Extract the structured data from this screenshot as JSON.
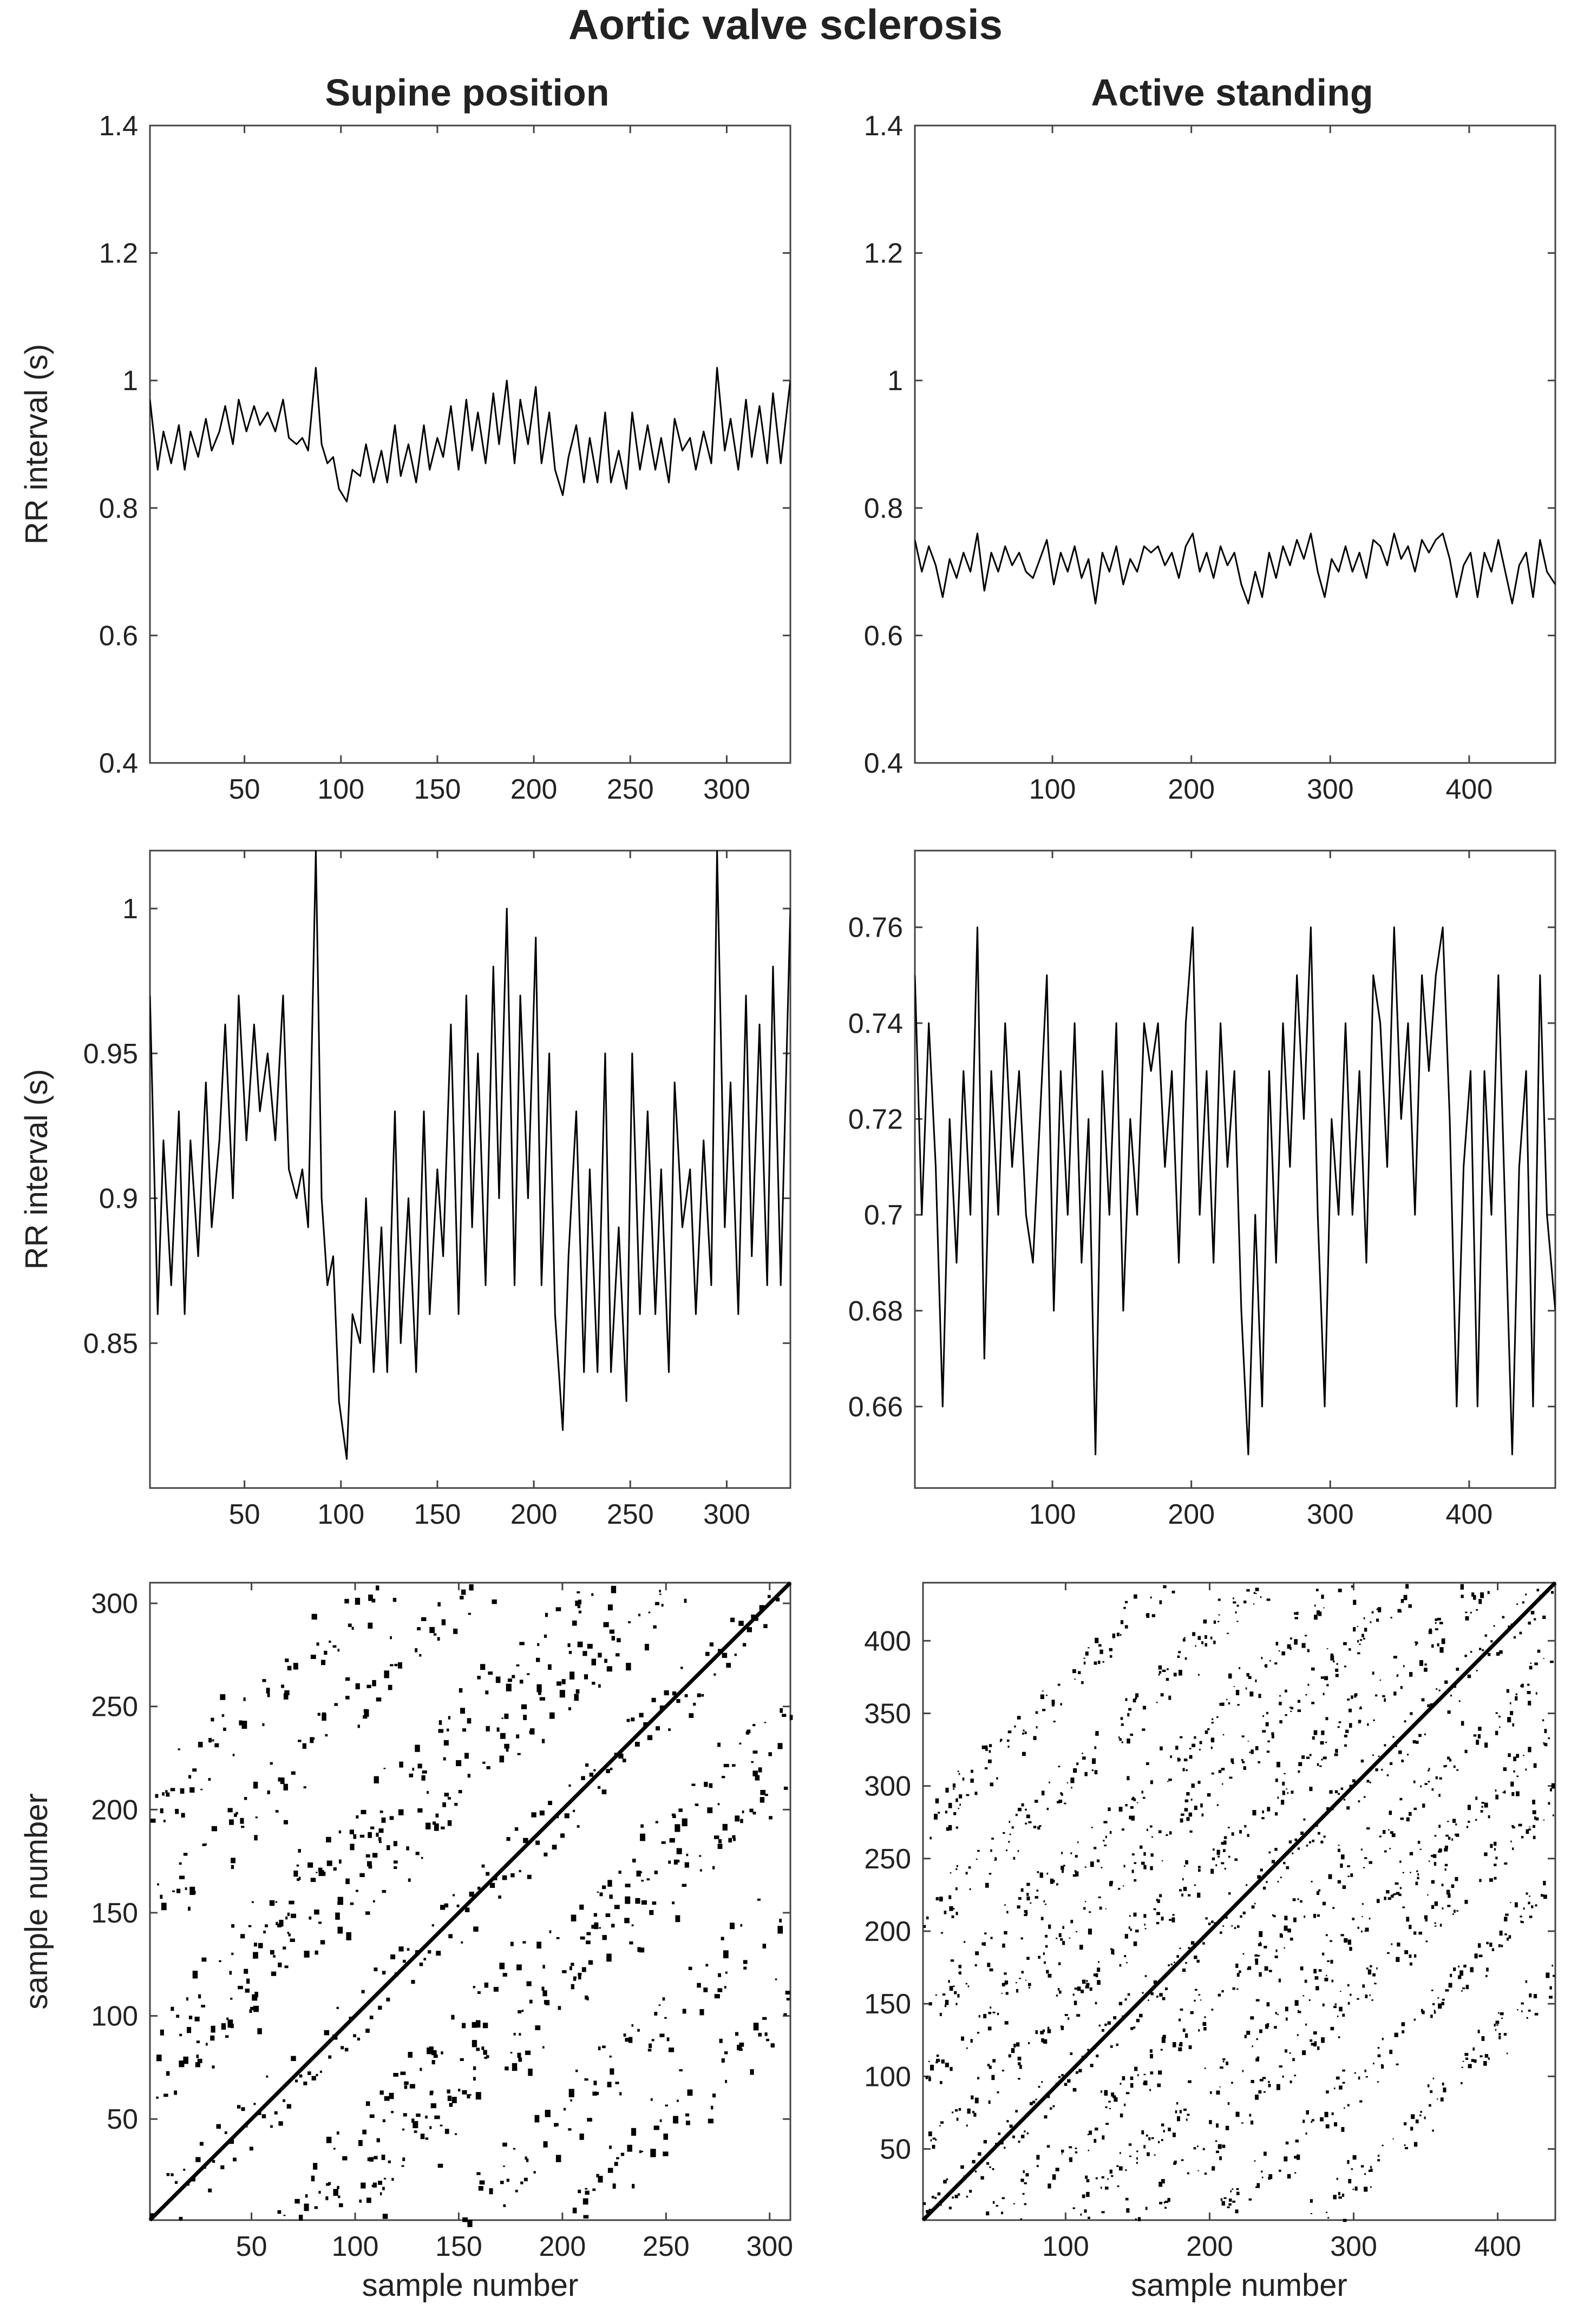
{
  "figure": {
    "title": "Aortic valve sclerosis",
    "column_titles": [
      "Supine position",
      "Active standing"
    ]
  },
  "chart_data": [
    {
      "id": "supine-rr-full",
      "type": "line",
      "title": "Supine position",
      "xlabel": "",
      "ylabel": "RR interval (s)",
      "xlim": [
        1,
        333
      ],
      "ylim": [
        0.4,
        1.4
      ],
      "xticks": [
        50,
        100,
        150,
        200,
        250,
        300
      ],
      "yticks": [
        0.4,
        0.6,
        0.8,
        1,
        1.2,
        1.4
      ],
      "ytick_labels": [
        "0.4",
        "0.6",
        "0.8",
        "1",
        "1.2",
        "1.4"
      ],
      "series": [
        {
          "x": [
            1,
            5,
            8,
            12,
            16,
            19,
            22,
            26,
            30,
            33,
            37,
            40,
            44,
            47,
            51,
            55,
            58,
            62,
            66,
            70,
            73,
            77,
            80,
            83,
            87,
            90,
            93,
            96,
            99,
            103,
            106,
            110,
            113,
            117,
            121,
            124,
            128,
            131,
            135,
            139,
            143,
            146,
            150,
            153,
            157,
            161,
            165,
            168,
            171,
            175,
            179,
            182,
            186,
            190,
            193,
            197,
            201,
            204,
            208,
            211,
            215,
            218,
            222,
            226,
            229,
            233,
            237,
            240,
            244,
            248,
            251,
            255,
            259,
            263,
            266,
            270,
            273,
            277,
            281,
            284,
            288,
            292,
            295,
            299,
            302,
            306,
            310,
            313,
            317,
            321,
            324,
            328,
            333
          ],
          "y": [
            0.97,
            0.86,
            0.92,
            0.87,
            0.93,
            0.86,
            0.92,
            0.88,
            0.94,
            0.89,
            0.92,
            0.96,
            0.9,
            0.97,
            0.92,
            0.96,
            0.93,
            0.95,
            0.92,
            0.97,
            0.91,
            0.9,
            0.91,
            0.89,
            1.02,
            0.9,
            0.87,
            0.88,
            0.83,
            0.81,
            0.86,
            0.85,
            0.9,
            0.84,
            0.89,
            0.84,
            0.93,
            0.85,
            0.9,
            0.84,
            0.93,
            0.86,
            0.91,
            0.88,
            0.96,
            0.86,
            0.97,
            0.89,
            0.95,
            0.87,
            0.98,
            0.9,
            1.0,
            0.87,
            0.97,
            0.9,
            0.99,
            0.87,
            0.95,
            0.86,
            0.82,
            0.88,
            0.93,
            0.84,
            0.91,
            0.84,
            0.95,
            0.84,
            0.89,
            0.83,
            0.95,
            0.86,
            0.93,
            0.86,
            0.91,
            0.84,
            0.94,
            0.89,
            0.91,
            0.86,
            0.92,
            0.87,
            1.02,
            0.89,
            0.94,
            0.86,
            0.97,
            0.88,
            0.96,
            0.87,
            0.98,
            0.87,
            1.0
          ]
        }
      ]
    },
    {
      "id": "standing-rr-full",
      "type": "line",
      "title": "Active standing",
      "xlabel": "",
      "ylabel": "",
      "xlim": [
        1,
        462
      ],
      "ylim": [
        0.4,
        1.4
      ],
      "xticks": [
        100,
        200,
        300,
        400
      ],
      "yticks": [
        0.4,
        0.6,
        0.8,
        1,
        1.2,
        1.4
      ],
      "ytick_labels": [
        "0.4",
        "0.6",
        "0.8",
        "1",
        "1.2",
        "1.4"
      ],
      "series": [
        {
          "x": [
            1,
            6,
            11,
            16,
            21,
            26,
            31,
            36,
            41,
            46,
            51,
            56,
            61,
            66,
            71,
            76,
            81,
            86,
            91,
            96,
            101,
            106,
            111,
            116,
            121,
            126,
            131,
            136,
            141,
            146,
            151,
            156,
            161,
            166,
            171,
            176,
            181,
            186,
            191,
            196,
            201,
            206,
            211,
            216,
            221,
            226,
            231,
            236,
            241,
            246,
            251,
            256,
            261,
            266,
            271,
            276,
            281,
            286,
            291,
            296,
            301,
            306,
            311,
            316,
            321,
            326,
            331,
            336,
            341,
            346,
            351,
            356,
            361,
            366,
            371,
            376,
            381,
            386,
            391,
            396,
            401,
            406,
            411,
            416,
            421,
            426,
            431,
            436,
            441,
            446,
            451,
            456,
            462
          ],
          "y": [
            0.75,
            0.7,
            0.74,
            0.71,
            0.66,
            0.72,
            0.69,
            0.73,
            0.7,
            0.76,
            0.67,
            0.73,
            0.7,
            0.74,
            0.71,
            0.73,
            0.7,
            0.69,
            0.72,
            0.75,
            0.68,
            0.73,
            0.7,
            0.74,
            0.69,
            0.72,
            0.65,
            0.73,
            0.7,
            0.74,
            0.68,
            0.72,
            0.7,
            0.74,
            0.73,
            0.74,
            0.71,
            0.73,
            0.69,
            0.74,
            0.76,
            0.7,
            0.73,
            0.69,
            0.74,
            0.71,
            0.73,
            0.68,
            0.65,
            0.7,
            0.66,
            0.73,
            0.69,
            0.74,
            0.71,
            0.75,
            0.72,
            0.76,
            0.7,
            0.66,
            0.72,
            0.7,
            0.74,
            0.7,
            0.73,
            0.69,
            0.75,
            0.74,
            0.71,
            0.76,
            0.72,
            0.74,
            0.7,
            0.75,
            0.73,
            0.75,
            0.76,
            0.72,
            0.66,
            0.71,
            0.73,
            0.66,
            0.73,
            0.7,
            0.75,
            0.7,
            0.65,
            0.71,
            0.73,
            0.66,
            0.75,
            0.7,
            0.68
          ]
        }
      ]
    },
    {
      "id": "supine-rr-zoom",
      "type": "line",
      "title": "",
      "xlabel": "",
      "ylabel": "RR interval (s)",
      "xlim": [
        1,
        333
      ],
      "ylim": [
        0.8,
        1.02
      ],
      "xticks": [
        50,
        100,
        150,
        200,
        250,
        300
      ],
      "yticks": [
        0.85,
        0.9,
        0.95,
        1
      ],
      "ytick_labels": [
        "0.85",
        "0.9",
        "0.95",
        "1"
      ],
      "series": [
        {
          "ref": "supine-rr-full"
        }
      ]
    },
    {
      "id": "standing-rr-zoom",
      "type": "line",
      "title": "",
      "xlabel": "",
      "ylabel": "",
      "xlim": [
        1,
        462
      ],
      "ylim": [
        0.643,
        0.776
      ],
      "xticks": [
        100,
        200,
        300,
        400
      ],
      "yticks": [
        0.66,
        0.68,
        0.7,
        0.72,
        0.74,
        0.76
      ],
      "ytick_labels": [
        "0.66",
        "0.68",
        "0.7",
        "0.72",
        "0.74",
        "0.76"
      ],
      "series": [
        {
          "ref": "standing-rr-full"
        }
      ]
    },
    {
      "id": "supine-recurrence-plot",
      "type": "heatmap",
      "title": "",
      "xlabel": "sample number",
      "ylabel": "sample number",
      "xlim": [
        1,
        310
      ],
      "ylim": [
        1,
        310
      ],
      "xticks": [
        50,
        100,
        150,
        200,
        250,
        300
      ],
      "yticks": [
        50,
        100,
        150,
        200,
        250,
        300
      ],
      "recurrence_bands": [
        -200,
        -150,
        -90,
        -60,
        60,
        90,
        150,
        200
      ]
    },
    {
      "id": "standing-recurrence-plot",
      "type": "heatmap",
      "title": "",
      "xlabel": "sample number",
      "ylabel": "",
      "xlim": [
        1,
        440
      ],
      "ylim": [
        1,
        440
      ],
      "xticks": [
        100,
        200,
        300,
        400
      ],
      "yticks": [
        50,
        100,
        150,
        200,
        250,
        300,
        350,
        400
      ],
      "recurrence_bands": [
        -270,
        -205,
        -145,
        -100,
        -50,
        50,
        100,
        145,
        205,
        270
      ]
    }
  ]
}
